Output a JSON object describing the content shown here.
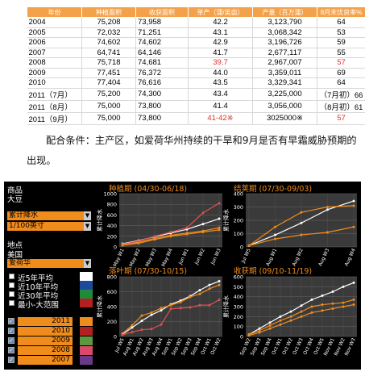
{
  "table": {
    "headers": [
      "年份",
      "种植面积",
      "收获面积",
      "单产（蒲/英亩）",
      "产量（百万蒲）",
      "8月末优良率%"
    ],
    "rows": [
      {
        "year": "2004",
        "plant": "75,208",
        "harvest": "73,958",
        "yield": "42.2",
        "prod": "3,123,790",
        "good": "64",
        "yr": false,
        "pr": false,
        "gr": false
      },
      {
        "year": "2005",
        "plant": "72,032",
        "harvest": "71,251",
        "yield": "43.1",
        "prod": "3,068,342",
        "good": "53",
        "yr": false,
        "pr": false,
        "gr": false
      },
      {
        "year": "2006",
        "plant": "74,602",
        "harvest": "74,602",
        "yield": "42.9",
        "prod": "3,196,726",
        "good": "59",
        "yr": false,
        "pr": false,
        "gr": false
      },
      {
        "year": "2007",
        "plant": "64,741",
        "harvest": "64,146",
        "yield": "41.7",
        "prod": "2,677,117",
        "good": "55",
        "yr": false,
        "pr": false,
        "gr": false
      },
      {
        "year": "2008",
        "plant": "75,718",
        "harvest": "74,681",
        "yield": "39.7",
        "prod": "2,967,007",
        "good": "57",
        "yr": true,
        "pr": false,
        "gr": true
      },
      {
        "year": "2009",
        "plant": "77,451",
        "harvest": "76,372",
        "yield": "44.0",
        "prod": "3,359,011",
        "good": "69",
        "yr": false,
        "pr": false,
        "gr": false
      },
      {
        "year": "2010",
        "plant": "77,404",
        "harvest": "76,616",
        "yield": "43.5",
        "prod": "3,329,341",
        "good": "64",
        "yr": false,
        "pr": false,
        "gr": false
      },
      {
        "year": "2011（7月）",
        "plant": "75,200",
        "harvest": "74,300",
        "yield": "43.4",
        "prod": "3,225,000",
        "good": "（7月初）66",
        "yr": false,
        "pr": false,
        "gr": false
      },
      {
        "year": "2011（8月）",
        "plant": "75,000",
        "harvest": "73,800",
        "yield": "41.4",
        "prod": "3,056,000",
        "good": "（8月初）61",
        "yr": false,
        "pr": false,
        "gr": false
      },
      {
        "year": "2011（9月）",
        "plant": "75,000",
        "harvest": "73,800",
        "yield": "41-42※",
        "prod": "3025000※",
        "good": "57",
        "yr": true,
        "pr": false,
        "gr": true
      }
    ]
  },
  "paragraph": "配合条件：主产区，如爱荷华州持续的干旱和9月是否有早霜威胁预期的出现。",
  "panel": {
    "commodity_label": "商品",
    "commodity_value": "大豆",
    "metric_value": "累计降水",
    "unit_value": "1/100英寸",
    "location_label": "地点",
    "country_value": "美国",
    "state_value": "爱荷华",
    "legend": [
      {
        "label": "近5年平均",
        "color": "#ffffff"
      },
      {
        "label": "近10年平均",
        "color": "#1e4a9e"
      },
      {
        "label": "近30年平均",
        "color": "#1f8a3c"
      },
      {
        "label": "最小-大范围",
        "color": "#b32020"
      }
    ],
    "years": [
      {
        "label": "2011",
        "color": "#f08c1c"
      },
      {
        "label": "2010",
        "color": "#b32020"
      },
      {
        "label": "2009",
        "color": "#5a9a3c"
      },
      {
        "label": "2008",
        "color": "#d94a6a"
      },
      {
        "label": "2007",
        "color": "#6a3a8a"
      }
    ]
  },
  "chart_data": [
    {
      "type": "line",
      "title": "种植期 (04/30-06/18)",
      "ylabel": "累计降水",
      "ylim": [
        0,
        1000
      ],
      "yticks": [
        "0",
        "200",
        "400",
        "600",
        "800",
        "1000"
      ],
      "x": [
        "May W1",
        "May W2",
        "May W3",
        "May W4",
        "Jun W1",
        "Jun W2",
        "Jun W3"
      ],
      "series": [
        {
          "color": "#ffffff",
          "values": [
            60,
            120,
            190,
            260,
            330,
            430,
            530
          ]
        },
        {
          "color": "#f08c1c",
          "values": [
            40,
            90,
            160,
            220,
            260,
            300,
            360
          ]
        },
        {
          "color": "#e05050",
          "values": [
            50,
            110,
            200,
            280,
            360,
            640,
            820
          ]
        },
        {
          "color": "#f08c1c",
          "values": [
            30,
            70,
            140,
            200,
            240,
            280,
            320
          ]
        }
      ]
    },
    {
      "type": "line",
      "title": "结荚期 (07/30-09/03)",
      "ylabel": "累计降水",
      "ylim": [
        0,
        400
      ],
      "yticks": [
        "0",
        "100",
        "200",
        "300",
        "400"
      ],
      "x": [
        "Jul W5",
        "Aug W1",
        "Aug W2",
        "Aug W3",
        "Aug W4"
      ],
      "series": [
        {
          "color": "#ffffff",
          "values": [
            10,
            90,
            180,
            280,
            345
          ]
        },
        {
          "color": "#f08c1c",
          "values": [
            10,
            150,
            260,
            300,
            310
          ]
        },
        {
          "color": "#f08c1c",
          "values": [
            10,
            60,
            90,
            110,
            150
          ]
        }
      ]
    },
    {
      "type": "line",
      "title": "落叶期 (07/30-10/15)",
      "ylabel": "累计降水",
      "ylim": [
        0,
        800
      ],
      "yticks": [
        "0",
        "200",
        "400",
        "600",
        "800"
      ],
      "x": [
        "Jul W5",
        "Aug W1",
        "Aug W2",
        "Aug W3",
        "Aug W4",
        "Sep W1",
        "Sep W2",
        "Sep W3",
        "Sep W4",
        "Oct W1",
        "Oct W2"
      ],
      "series": [
        {
          "color": "#ffffff",
          "values": [
            30,
            120,
            210,
            290,
            350,
            430,
            480,
            540,
            620,
            690,
            740
          ]
        },
        {
          "color": "#f08c1c",
          "values": [
            40,
            150,
            280,
            320,
            380,
            420,
            460,
            530,
            570,
            640,
            690
          ]
        },
        {
          "color": "#e05050",
          "values": [
            20,
            60,
            90,
            100,
            160,
            370,
            380,
            390,
            420,
            420,
            490
          ]
        }
      ]
    },
    {
      "type": "line",
      "title": "收获期 (09/10-11/19)",
      "ylabel": "累计降水",
      "ylim": [
        0,
        600
      ],
      "yticks": [
        "0",
        "100",
        "200",
        "300",
        "400",
        "500",
        "600"
      ],
      "x": [
        "Sep W2",
        "Sep W3",
        "Sep W4",
        "Oct W1",
        "Oct W2",
        "Oct W3",
        "Oct W4",
        "Oct W5",
        "Nov W1",
        "Nov W2",
        "Nov W3"
      ],
      "series": [
        {
          "color": "#ffffff",
          "values": [
            20,
            80,
            140,
            200,
            250,
            310,
            370,
            410,
            450,
            500,
            540
          ]
        },
        {
          "color": "#f08c1c",
          "values": [
            20,
            60,
            110,
            160,
            200,
            250,
            300,
            320,
            330,
            340,
            370
          ]
        },
        {
          "color": "#f08c1c",
          "values": [
            10,
            40,
            80,
            120,
            160,
            200,
            240,
            260,
            280,
            300,
            320
          ]
        }
      ]
    }
  ]
}
